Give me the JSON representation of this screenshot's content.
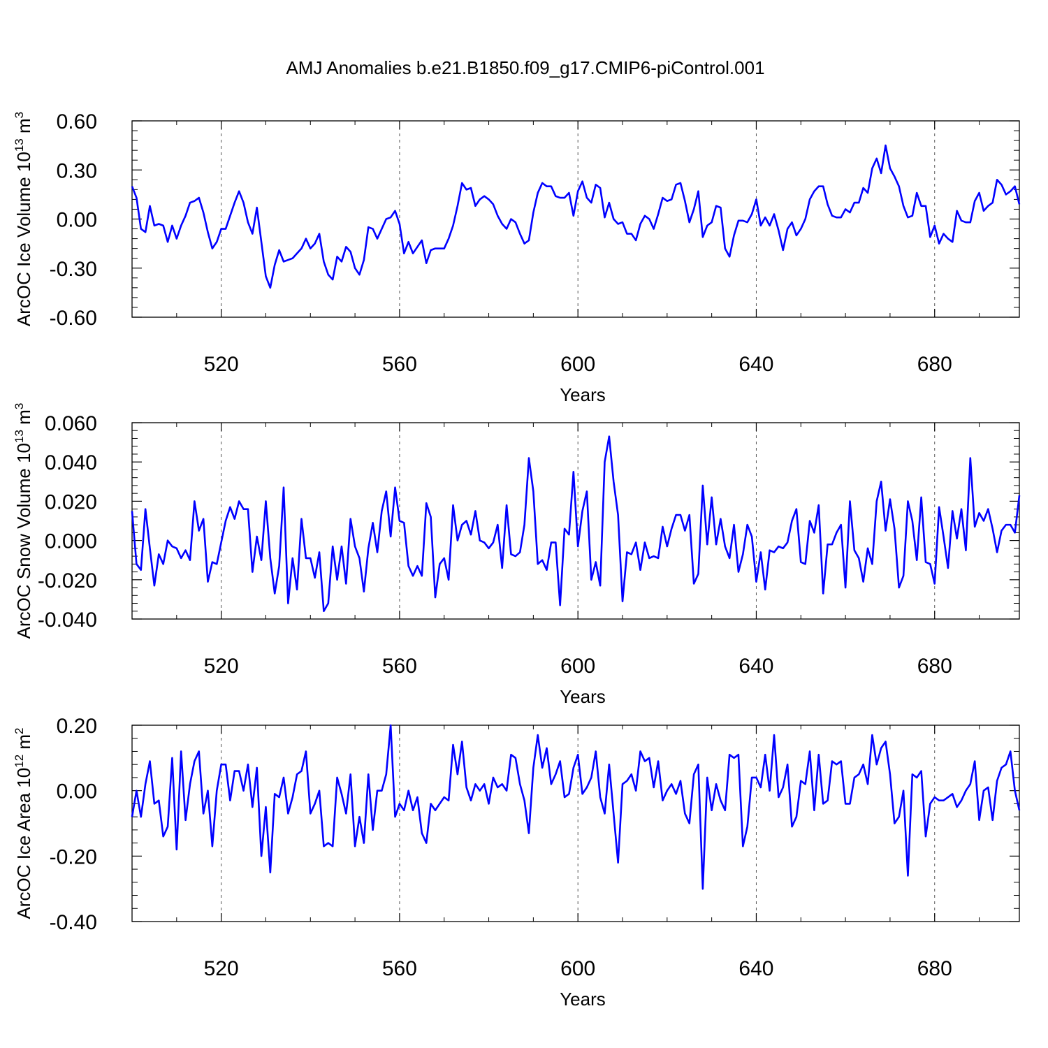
{
  "title": "AMJ Anomalies b.e21.B1850.f09_g17.CMIP6-piControl.001",
  "colors": {
    "series": "#0000ff",
    "axis": "#000000",
    "grid": "#555555"
  },
  "chart_data": [
    {
      "type": "line",
      "name": "ice-volume",
      "ylabel": "ArcOC Ice Volume 10",
      "ylabel_sup": "13",
      "ylabel_unit": "m",
      "ylabel_unit_sup": "3",
      "xlabel": "Years",
      "xlim": [
        500,
        699
      ],
      "ylim": [
        -0.6,
        0.6
      ],
      "xticks": [
        520,
        560,
        600,
        640,
        680
      ],
      "yticks": [
        -0.6,
        -0.3,
        0.0,
        0.3,
        0.6
      ],
      "ytick_labels": [
        "-0.60",
        "-0.30",
        "0.00",
        "0.30",
        "0.60"
      ],
      "grid": "vertical dashed",
      "series": [
        {
          "name": "ArcOC Ice Volume",
          "x_start": 500,
          "x_step": 1,
          "values": [
            0.2,
            0.13,
            -0.06,
            -0.08,
            0.08,
            -0.04,
            -0.03,
            -0.04,
            -0.14,
            -0.04,
            -0.12,
            -0.04,
            0.02,
            0.1,
            0.11,
            0.13,
            0.04,
            -0.08,
            -0.18,
            -0.14,
            -0.06,
            -0.06,
            0.02,
            0.1,
            0.17,
            0.1,
            -0.02,
            -0.09,
            0.07,
            -0.14,
            -0.35,
            -0.42,
            -0.28,
            -0.19,
            -0.26,
            -0.25,
            -0.24,
            -0.21,
            -0.18,
            -0.12,
            -0.18,
            -0.15,
            -0.09,
            -0.26,
            -0.34,
            -0.37,
            -0.23,
            -0.26,
            -0.17,
            -0.2,
            -0.3,
            -0.34,
            -0.25,
            -0.05,
            -0.06,
            -0.12,
            -0.06,
            0.0,
            0.01,
            0.05,
            -0.03,
            -0.21,
            -0.14,
            -0.21,
            -0.17,
            -0.13,
            -0.27,
            -0.19,
            -0.18,
            -0.18,
            -0.18,
            -0.12,
            -0.04,
            0.08,
            0.22,
            0.18,
            0.19,
            0.08,
            0.12,
            0.14,
            0.12,
            0.09,
            0.02,
            -0.03,
            -0.06,
            0.0,
            -0.02,
            -0.09,
            -0.15,
            -0.13,
            0.04,
            0.16,
            0.22,
            0.2,
            0.2,
            0.14,
            0.13,
            0.13,
            0.16,
            0.02,
            0.17,
            0.23,
            0.13,
            0.1,
            0.21,
            0.19,
            0.01,
            0.1,
            0.0,
            -0.03,
            -0.02,
            -0.09,
            -0.09,
            -0.13,
            -0.03,
            0.02,
            0.0,
            -0.06,
            0.03,
            0.13,
            0.11,
            0.12,
            0.21,
            0.22,
            0.11,
            -0.02,
            0.06,
            0.17,
            -0.11,
            -0.04,
            -0.02,
            0.08,
            0.07,
            -0.18,
            -0.23,
            -0.1,
            -0.01,
            -0.01,
            -0.02,
            0.03,
            0.12,
            -0.04,
            0.01,
            -0.04,
            0.03,
            -0.07,
            -0.19,
            -0.06,
            -0.02,
            -0.1,
            -0.06,
            0.0,
            0.12,
            0.17,
            0.2,
            0.2,
            0.09,
            0.02,
            0.01,
            0.01,
            0.06,
            0.04,
            0.1,
            0.1,
            0.19,
            0.16,
            0.31,
            0.37,
            0.28,
            0.45,
            0.31,
            0.26,
            0.2,
            0.08,
            0.01,
            0.02,
            0.16,
            0.08,
            0.08,
            -0.11,
            -0.04,
            -0.15,
            -0.09,
            -0.12,
            -0.14,
            0.05,
            -0.01,
            -0.02,
            -0.02,
            0.11,
            0.16,
            0.05,
            0.08,
            0.1,
            0.24,
            0.21,
            0.15,
            0.17,
            0.2,
            0.09
          ]
        }
      ]
    },
    {
      "type": "line",
      "name": "snow-volume",
      "ylabel": "ArcOC Snow Volume 10",
      "ylabel_sup": "13",
      "ylabel_unit": "m",
      "ylabel_unit_sup": "3",
      "xlabel": "Years",
      "xlim": [
        500,
        699
      ],
      "ylim": [
        -0.04,
        0.06
      ],
      "xticks": [
        520,
        560,
        600,
        640,
        680
      ],
      "yticks": [
        -0.04,
        -0.02,
        0.0,
        0.02,
        0.04,
        0.06
      ],
      "ytick_labels": [
        "-0.040",
        "-0.020",
        "0.000",
        "0.020",
        "0.040",
        "0.060"
      ],
      "grid": "vertical dashed",
      "series": [
        {
          "name": "ArcOC Snow Volume",
          "x_start": 500,
          "x_step": 1,
          "values": [
            0.015,
            -0.012,
            -0.015,
            0.016,
            -0.004,
            -0.023,
            -0.007,
            -0.012,
            0.0,
            -0.003,
            -0.004,
            -0.009,
            -0.005,
            -0.01,
            0.02,
            0.005,
            0.011,
            -0.021,
            -0.011,
            -0.012,
            -0.001,
            0.01,
            0.017,
            0.011,
            0.02,
            0.016,
            0.016,
            -0.016,
            0.002,
            -0.01,
            0.02,
            -0.009,
            -0.027,
            -0.013,
            0.027,
            -0.032,
            -0.009,
            -0.025,
            0.011,
            -0.009,
            -0.009,
            -0.019,
            -0.006,
            -0.036,
            -0.032,
            -0.003,
            -0.02,
            -0.003,
            -0.022,
            0.011,
            -0.003,
            -0.009,
            -0.026,
            -0.004,
            0.009,
            -0.006,
            0.015,
            0.025,
            0.002,
            0.027,
            0.01,
            0.009,
            -0.013,
            -0.018,
            -0.013,
            -0.018,
            0.019,
            0.012,
            -0.029,
            -0.012,
            -0.009,
            -0.02,
            0.018,
            0.0,
            0.008,
            0.01,
            0.003,
            0.015,
            0.0,
            -0.001,
            -0.004,
            -0.001,
            0.008,
            -0.014,
            0.018,
            -0.007,
            -0.008,
            -0.006,
            0.008,
            0.042,
            0.025,
            -0.012,
            -0.01,
            -0.015,
            -0.001,
            -0.001,
            -0.033,
            0.006,
            0.003,
            0.035,
            -0.003,
            0.015,
            0.025,
            -0.02,
            -0.011,
            -0.023,
            0.04,
            0.053,
            0.03,
            0.013,
            -0.031,
            -0.006,
            -0.007,
            -0.001,
            -0.015,
            -0.001,
            -0.009,
            -0.008,
            -0.009,
            0.007,
            -0.003,
            0.006,
            0.013,
            0.013,
            0.005,
            0.013,
            -0.022,
            -0.017,
            0.028,
            -0.002,
            0.022,
            -0.002,
            0.011,
            -0.003,
            -0.009,
            0.008,
            -0.016,
            -0.007,
            0.008,
            0.002,
            -0.021,
            -0.006,
            -0.025,
            -0.005,
            -0.006,
            -0.003,
            -0.004,
            -0.001,
            0.01,
            0.016,
            -0.011,
            -0.012,
            0.01,
            0.004,
            0.018,
            -0.027,
            -0.002,
            -0.002,
            0.004,
            0.008,
            -0.024,
            0.02,
            -0.005,
            -0.009,
            -0.021,
            -0.004,
            -0.012,
            0.02,
            0.03,
            0.005,
            0.021,
            0.006,
            -0.024,
            -0.018,
            0.02,
            0.01,
            -0.01,
            0.022,
            -0.011,
            -0.012,
            -0.022,
            0.017,
            0.002,
            -0.014,
            0.015,
            0.001,
            0.016,
            -0.005,
            0.042,
            0.007,
            0.014,
            0.01,
            0.016,
            0.006,
            -0.006,
            0.005,
            0.008,
            0.008,
            0.004,
            0.023
          ]
        }
      ]
    },
    {
      "type": "line",
      "name": "ice-area",
      "ylabel": "ArcOC Ice Area 10",
      "ylabel_sup": "12",
      "ylabel_unit": "m",
      "ylabel_unit_sup": "2",
      "xlabel": "Years",
      "xlim": [
        500,
        699
      ],
      "ylim": [
        -0.4,
        0.2
      ],
      "xticks": [
        520,
        560,
        600,
        640,
        680
      ],
      "yticks": [
        -0.4,
        -0.2,
        0.0,
        0.2
      ],
      "ytick_labels": [
        "-0.40",
        "-0.20",
        "0.00",
        "0.20"
      ],
      "grid": "vertical dashed",
      "series": [
        {
          "name": "ArcOC Ice Area",
          "x_start": 500,
          "x_step": 1,
          "values": [
            -0.08,
            0.0,
            -0.08,
            0.02,
            0.09,
            -0.04,
            -0.03,
            -0.14,
            -0.11,
            0.1,
            -0.18,
            0.12,
            -0.09,
            0.02,
            0.09,
            0.12,
            -0.07,
            0.0,
            -0.17,
            0.0,
            0.08,
            0.08,
            -0.03,
            0.06,
            0.06,
            0.0,
            0.08,
            -0.05,
            0.07,
            -0.2,
            -0.05,
            -0.25,
            -0.01,
            -0.02,
            0.04,
            -0.07,
            -0.02,
            0.05,
            0.06,
            0.12,
            -0.07,
            -0.04,
            0.0,
            -0.17,
            -0.16,
            -0.17,
            0.04,
            -0.01,
            -0.07,
            0.05,
            -0.17,
            -0.08,
            -0.16,
            0.05,
            -0.12,
            0.0,
            0.0,
            0.05,
            0.2,
            -0.08,
            -0.04,
            -0.06,
            0.0,
            -0.06,
            -0.02,
            -0.13,
            -0.16,
            -0.04,
            -0.06,
            -0.04,
            -0.02,
            -0.03,
            0.14,
            0.05,
            0.15,
            0.01,
            -0.03,
            0.02,
            0.0,
            0.02,
            -0.04,
            0.04,
            0.01,
            0.02,
            0.0,
            0.11,
            0.1,
            0.02,
            -0.03,
            -0.13,
            0.07,
            0.17,
            0.07,
            0.13,
            0.02,
            0.05,
            0.09,
            -0.02,
            -0.01,
            0.07,
            0.11,
            -0.01,
            0.01,
            0.04,
            0.12,
            -0.02,
            -0.07,
            0.08,
            -0.07,
            -0.22,
            0.02,
            0.03,
            0.05,
            0.0,
            0.12,
            0.09,
            0.1,
            0.01,
            0.09,
            -0.03,
            0.0,
            0.02,
            -0.01,
            0.03,
            -0.07,
            -0.1,
            0.05,
            0.08,
            -0.3,
            0.04,
            -0.06,
            0.02,
            -0.03,
            -0.06,
            0.11,
            0.1,
            0.11,
            -0.17,
            -0.11,
            0.04,
            0.04,
            0.01,
            0.11,
            0.0,
            0.17,
            -0.02,
            0.01,
            0.08,
            -0.11,
            -0.08,
            0.03,
            0.02,
            0.12,
            -0.06,
            0.11,
            -0.04,
            -0.03,
            0.09,
            0.08,
            0.09,
            -0.04,
            -0.04,
            0.04,
            0.05,
            0.08,
            0.02,
            0.17,
            0.08,
            0.13,
            0.15,
            0.05,
            -0.1,
            -0.08,
            0.0,
            -0.26,
            0.05,
            0.04,
            0.06,
            -0.14,
            -0.04,
            -0.02,
            -0.03,
            -0.03,
            -0.02,
            -0.01,
            -0.05,
            -0.03,
            0.0,
            0.02,
            0.09,
            -0.09,
            0.0,
            0.01,
            -0.09,
            0.03,
            0.07,
            0.08,
            0.12,
            0.0,
            -0.06
          ]
        }
      ]
    }
  ]
}
